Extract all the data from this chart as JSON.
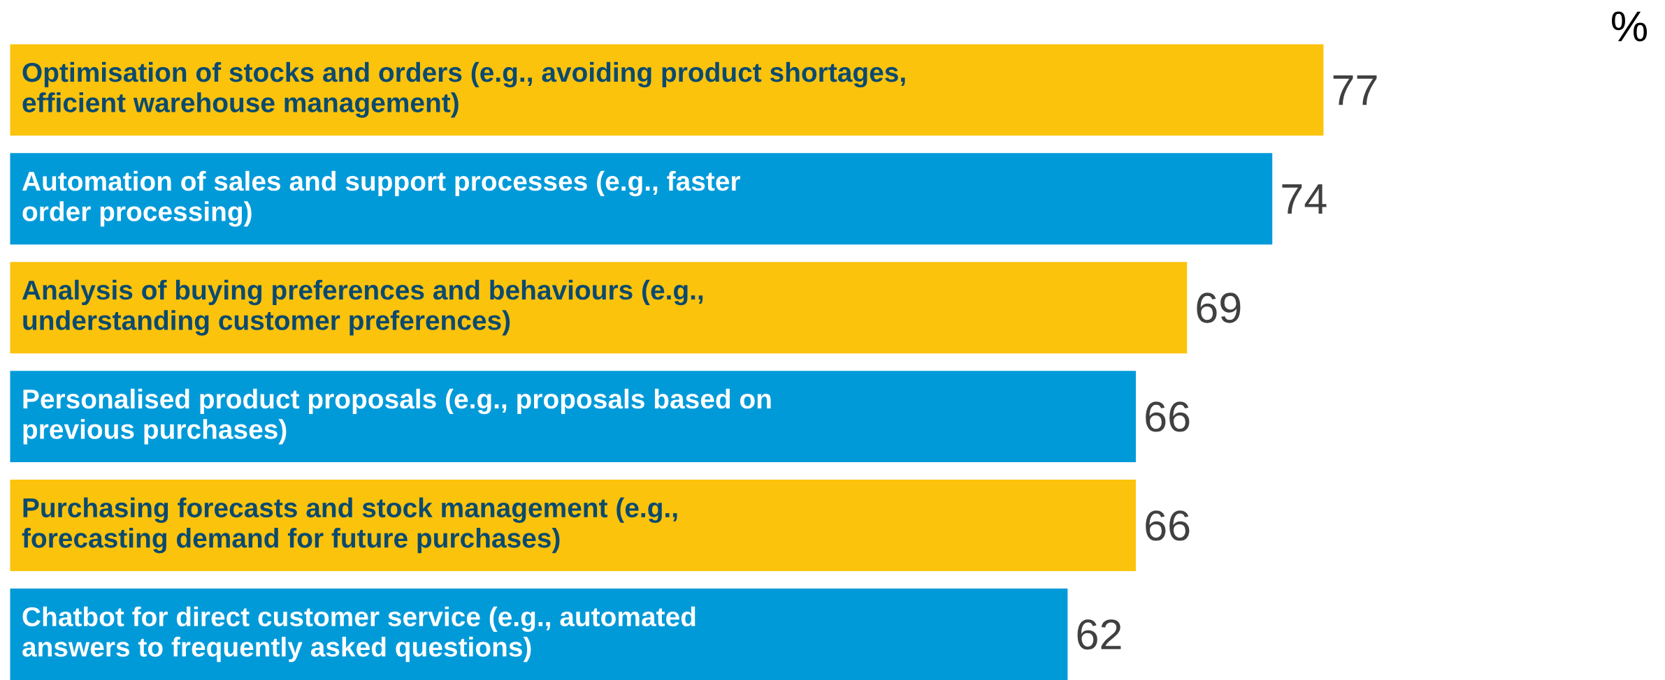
{
  "chart_data": {
    "type": "bar",
    "orientation": "horizontal",
    "categories": [
      "Optimisation of stocks and orders (e.g., avoiding product shortages,\nefficient warehouse management)",
      "Automation of sales and support processes (e.g., faster\norder processing)",
      "Analysis of buying preferences and behaviours (e.g.,\nunderstanding customer preferences)",
      "Personalised product proposals (e.g., proposals based on\nprevious purchases)",
      "Purchasing forecasts and stock management (e.g.,\nforecasting demand for future purchases)",
      "Chatbot for direct customer service (e.g., automated\nanswers to frequently asked questions)"
    ],
    "values": [
      77,
      74,
      69,
      66,
      66,
      62
    ],
    "colors": [
      "#fcc30c",
      "#009ad9",
      "#fcc30c",
      "#009ad9",
      "#fcc30c",
      "#009ad9"
    ],
    "data_labels": true,
    "annotations": [
      "%"
    ]
  }
}
